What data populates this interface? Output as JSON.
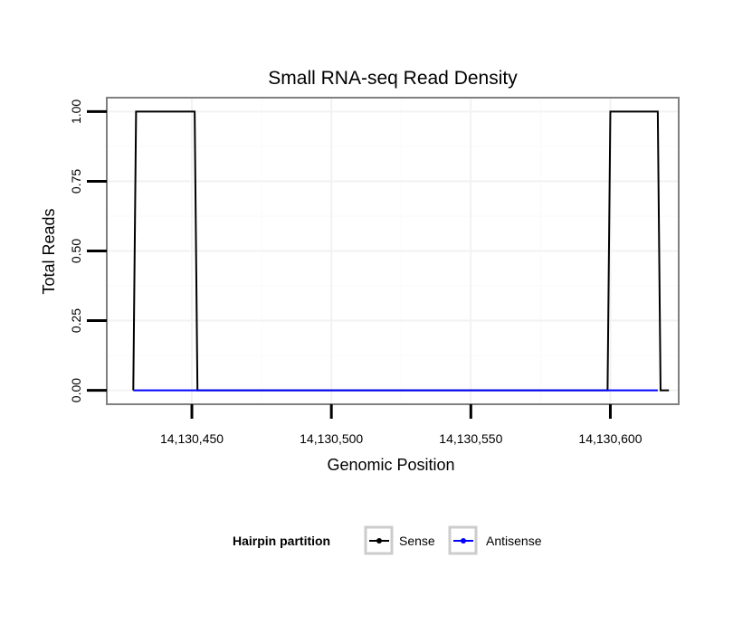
{
  "chart_data": {
    "type": "line",
    "title": "Small RNA-seq Read Density",
    "xlabel": "Genomic Position",
    "ylabel": "Total Reads",
    "xlim": [
      14130419.5,
      14130624.5
    ],
    "ylim": [
      -0.05,
      1.05
    ],
    "x_ticks": [
      14130450,
      14130500,
      14130550,
      14130600
    ],
    "x_tick_labels": [
      "14,130,450",
      "14,130,500",
      "14,130,550",
      "14,130,600"
    ],
    "y_ticks": [
      0,
      0.25,
      0.5,
      0.75,
      1
    ],
    "y_tick_labels": [
      "0.00",
      "0.25",
      "0.50",
      "0.75",
      "1.00"
    ],
    "grid": true,
    "legend": {
      "title": "Hairpin partition",
      "position": "bottom"
    },
    "series": [
      {
        "name": "Sense",
        "color": "#000000",
        "x": [
          14130429,
          14130430,
          14130451,
          14130452,
          14130599,
          14130600,
          14130617,
          14130618,
          14130621
        ],
        "y": [
          0,
          1,
          1,
          0,
          0,
          1,
          1,
          0,
          0
        ]
      },
      {
        "name": "Antisense",
        "color": "#0000ff",
        "x": [
          14130429,
          14130451,
          14130599,
          14130617
        ],
        "y": [
          0,
          0,
          0,
          0
        ]
      }
    ]
  }
}
